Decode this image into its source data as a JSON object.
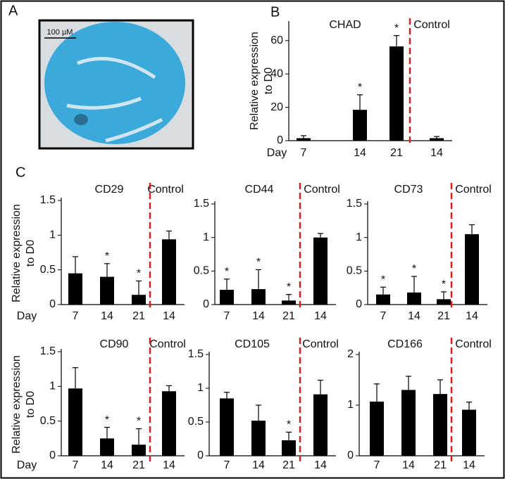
{
  "image_panel": {
    "label": "A",
    "scale_bar": "100 µM"
  },
  "chart_data": [
    {
      "type": "bar",
      "panel": "B",
      "title": "CHAD",
      "control_label": "Control",
      "x_lead": "Day",
      "ylabel": "Relative expression to D0",
      "categories": [
        "7",
        "14",
        "21",
        "14"
      ],
      "values": [
        1.5,
        18.5,
        56.5,
        1.5
      ],
      "errors": [
        1.5,
        9,
        6.5,
        1
      ],
      "significance": [
        null,
        "*",
        "*",
        null
      ],
      "color": "#000000",
      "divider_color": "#cc2222",
      "ylim": [
        0,
        70
      ],
      "yticks": [
        0,
        20,
        40,
        60
      ]
    },
    {
      "type": "bar",
      "panel": "C",
      "title": "CD29",
      "control_label": "Control",
      "x_lead": "Day",
      "ylabel": "Relative expression to D0",
      "categories": [
        "7",
        "14",
        "21",
        "14"
      ],
      "values": [
        0.45,
        0.4,
        0.14,
        0.94
      ],
      "errors": [
        0.24,
        0.19,
        0.2,
        0.12
      ],
      "significance": [
        null,
        "*",
        "*",
        null
      ],
      "color": "#000000",
      "divider_color": "#cc2222",
      "ylim": [
        0,
        1.5
      ],
      "yticks": [
        0,
        0.5,
        1,
        1.5
      ]
    },
    {
      "type": "bar",
      "title": "CD44",
      "control_label": "Control",
      "categories": [
        "7",
        "14",
        "21",
        "14"
      ],
      "values": [
        0.22,
        0.23,
        0.06,
        1.0
      ],
      "errors": [
        0.16,
        0.29,
        0.09,
        0.06
      ],
      "significance": [
        "*",
        "*",
        "*",
        null
      ],
      "color": "#000000",
      "divider_color": "#cc2222",
      "ylim": [
        0,
        1.5
      ],
      "yticks": [
        0,
        0.5,
        1,
        1.5
      ]
    },
    {
      "type": "bar",
      "title": "CD73",
      "control_label": "Control",
      "categories": [
        "7",
        "14",
        "21",
        "14"
      ],
      "values": [
        0.15,
        0.18,
        0.08,
        1.05
      ],
      "errors": [
        0.11,
        0.24,
        0.11,
        0.14
      ],
      "significance": [
        "*",
        "*",
        "*",
        null
      ],
      "color": "#000000",
      "divider_color": "#cc2222",
      "ylim": [
        0,
        1.5
      ],
      "yticks": [
        0,
        0.5,
        1,
        1.5
      ]
    },
    {
      "type": "bar",
      "title": "CD90",
      "control_label": "Control",
      "x_lead": "Day",
      "ylabel": "Relative expression to D0",
      "categories": [
        "7",
        "14",
        "21",
        "14"
      ],
      "values": [
        0.97,
        0.25,
        0.16,
        0.93
      ],
      "errors": [
        0.3,
        0.16,
        0.23,
        0.08
      ],
      "significance": [
        null,
        "*",
        "*",
        null
      ],
      "color": "#000000",
      "divider_color": "#cc2222",
      "ylim": [
        0,
        1.5
      ],
      "yticks": [
        0,
        0.5,
        1,
        1.5
      ]
    },
    {
      "type": "bar",
      "title": "CD105",
      "control_label": "Control",
      "categories": [
        "7",
        "14",
        "21",
        "14"
      ],
      "values": [
        0.85,
        0.52,
        0.23,
        0.91
      ],
      "errors": [
        0.09,
        0.23,
        0.12,
        0.21
      ],
      "significance": [
        null,
        null,
        "*",
        null
      ],
      "color": "#000000",
      "divider_color": "#cc2222",
      "ylim": [
        0,
        1.5
      ],
      "yticks": [
        0,
        0.5,
        1,
        1.5
      ]
    },
    {
      "type": "bar",
      "title": "CD166",
      "control_label": "Control",
      "categories": [
        "7",
        "14",
        "21",
        "14"
      ],
      "values": [
        1.07,
        1.3,
        1.22,
        0.91
      ],
      "errors": [
        0.35,
        0.27,
        0.28,
        0.15
      ],
      "significance": [
        null,
        null,
        null,
        null
      ],
      "color": "#000000",
      "divider_color": "#cc2222",
      "ylim": [
        0,
        2
      ],
      "yticks": [
        0,
        1,
        2
      ]
    }
  ]
}
